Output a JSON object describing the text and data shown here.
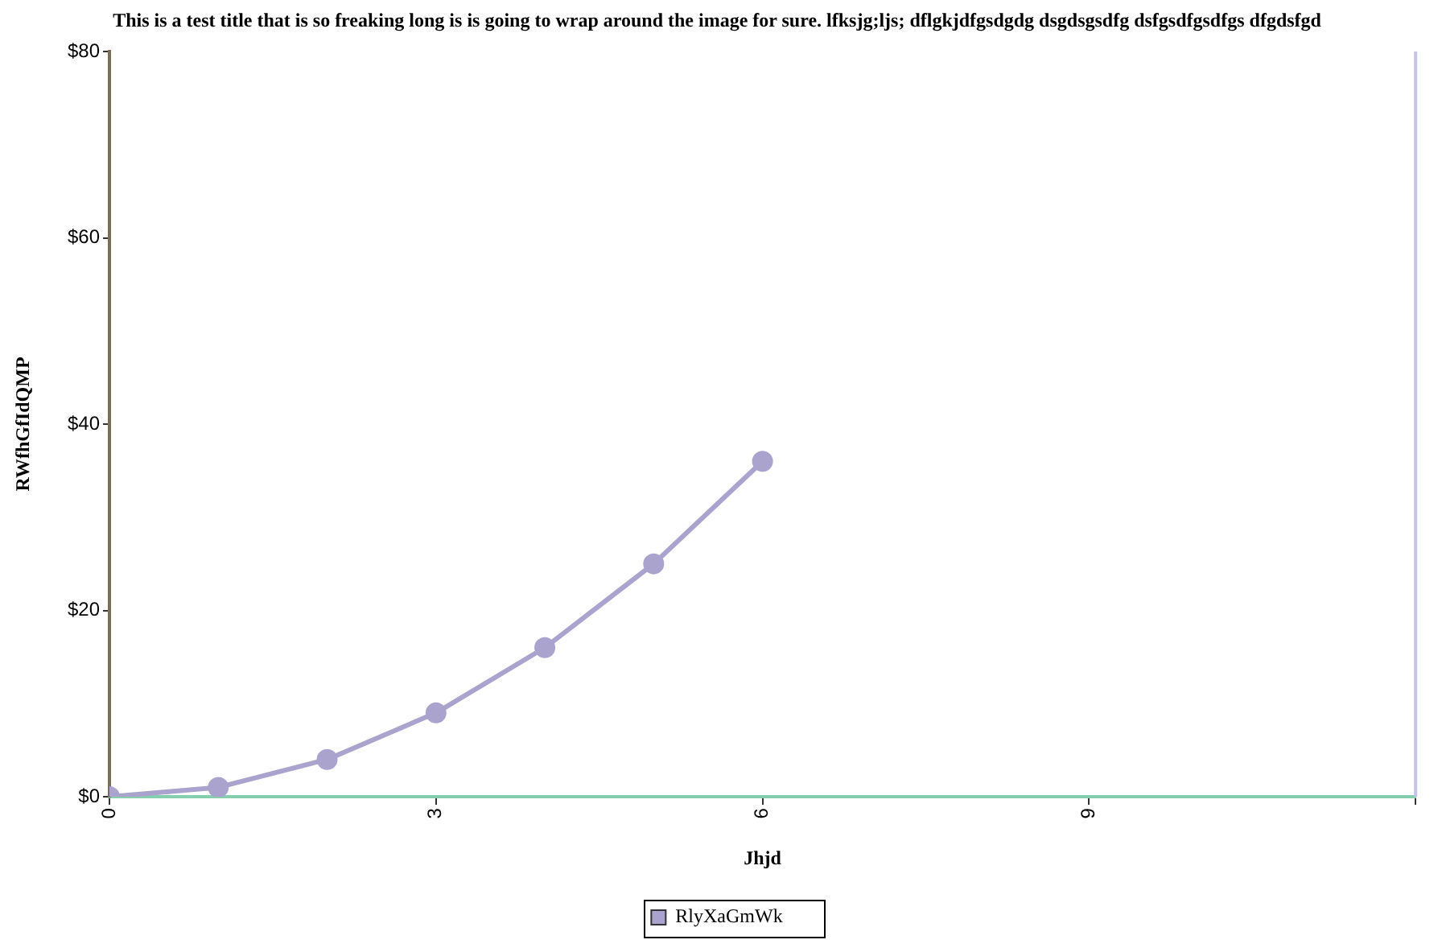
{
  "chart_data": {
    "type": "line",
    "title": "This is a test title that is so freaking long is is going to wrap around the image for sure. lfksjg;ljs; dflgkjdfgsdgdg dsgdsgsdfg dsfgsdfgsdfgs dfgdsfgd",
    "xlabel": "Jhjd",
    "ylabel": "RWfhGfIdQMP",
    "x": [
      0,
      1,
      2,
      3,
      4,
      5,
      6
    ],
    "series": [
      {
        "name": "RlyXaGmWk",
        "color": "#a9a3ce",
        "values": [
          0,
          1,
          4,
          9,
          16,
          25,
          36
        ]
      }
    ],
    "xlim": [
      0,
      12
    ],
    "xticks": [
      0,
      3,
      6,
      9,
      {
        "value": 12,
        "label": null
      }
    ],
    "ylim": [
      0,
      80
    ],
    "yticks": [
      {
        "value": 0,
        "label": "$0"
      },
      {
        "value": 20,
        "label": "$20"
      },
      {
        "value": 40,
        "label": "$40"
      },
      {
        "value": 60,
        "label": "$60"
      },
      {
        "value": 80,
        "label": "$80"
      }
    ],
    "legend": "bottom",
    "marker": "circle",
    "line_style": "solid"
  }
}
